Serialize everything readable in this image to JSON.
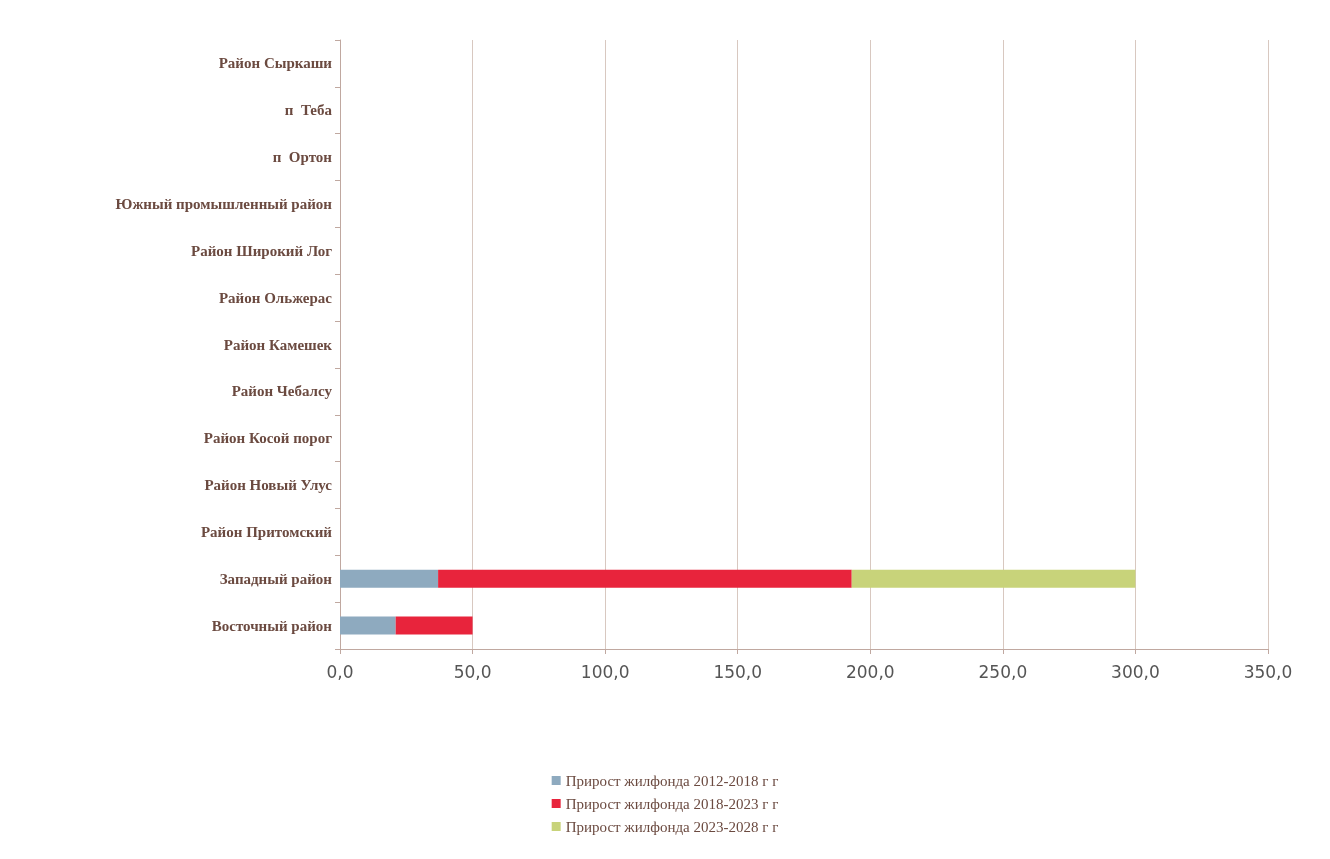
{
  "chart_data": {
    "type": "bar",
    "orientation": "horizontal",
    "stacked": true,
    "categories": [
      "Район Сыркаши",
      "п  Теба",
      "п  Ортон",
      "Южный промышленный район",
      "Район Широкий Лог",
      "Район Ольжерас",
      "Район Камешек",
      "Район Чебалсу",
      "Район Косой порог",
      "Район Новый Улус",
      "Район Притомский",
      "Западный район",
      "Восточный район"
    ],
    "series": [
      {
        "name": "Прирост жилфонда 2012-2018 г г",
        "color": "#8eaabf",
        "values": [
          0,
          0,
          0,
          0,
          0,
          0,
          0,
          0,
          0,
          0,
          0,
          37,
          21
        ]
      },
      {
        "name": "Прирост жилфонда 2018-2023 г г",
        "color": "#e8243c",
        "values": [
          0,
          0,
          0,
          0,
          0,
          0,
          0,
          0,
          0,
          0,
          0,
          156,
          29
        ]
      },
      {
        "name": "Прирост жилфонда 2023-2028 г г",
        "color": "#c8d37a",
        "values": [
          0,
          0,
          0,
          0,
          0,
          0,
          0,
          0,
          0,
          0,
          0,
          107,
          0
        ]
      }
    ],
    "xlim": [
      0,
      350
    ],
    "xticks": [
      {
        "value": 0,
        "label": "0,0"
      },
      {
        "value": 50,
        "label": "50,0"
      },
      {
        "value": 100,
        "label": "100,0"
      },
      {
        "value": 150,
        "label": "150,0"
      },
      {
        "value": 200,
        "label": "200,0"
      },
      {
        "value": 250,
        "label": "250,0"
      },
      {
        "value": 300,
        "label": "300,0"
      },
      {
        "value": 350,
        "label": "350,0"
      }
    ],
    "grid": "x",
    "legend": "bottom"
  }
}
